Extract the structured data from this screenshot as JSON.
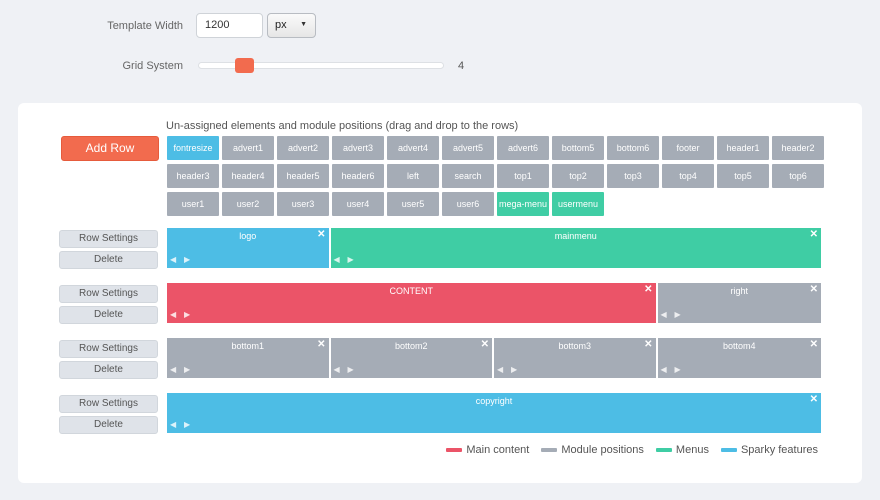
{
  "settings": {
    "width_label": "Template Width",
    "width_value": "1200",
    "unit_value": "px",
    "grid_label": "Grid System",
    "grid_value": "4",
    "grid_fraction": 0.15
  },
  "builder": {
    "add_row_label": "Add Row",
    "unassigned_title": "Un-assigned elements and module positions (drag and drop to the rows)",
    "unassigned": [
      {
        "label": "fontresize",
        "type": "sparky"
      },
      {
        "label": "advert1",
        "type": "module"
      },
      {
        "label": "advert2",
        "type": "module"
      },
      {
        "label": "advert3",
        "type": "module"
      },
      {
        "label": "advert4",
        "type": "module"
      },
      {
        "label": "advert5",
        "type": "module"
      },
      {
        "label": "advert6",
        "type": "module"
      },
      {
        "label": "bottom5",
        "type": "module"
      },
      {
        "label": "bottom6",
        "type": "module"
      },
      {
        "label": "footer",
        "type": "module"
      },
      {
        "label": "header1",
        "type": "module"
      },
      {
        "label": "header2",
        "type": "module"
      },
      {
        "label": "header3",
        "type": "module"
      },
      {
        "label": "header4",
        "type": "module"
      },
      {
        "label": "header5",
        "type": "module"
      },
      {
        "label": "header6",
        "type": "module"
      },
      {
        "label": "left",
        "type": "module"
      },
      {
        "label": "search",
        "type": "module"
      },
      {
        "label": "top1",
        "type": "module"
      },
      {
        "label": "top2",
        "type": "module"
      },
      {
        "label": "top3",
        "type": "module"
      },
      {
        "label": "top4",
        "type": "module"
      },
      {
        "label": "top5",
        "type": "module"
      },
      {
        "label": "top6",
        "type": "module"
      },
      {
        "label": "user1",
        "type": "module"
      },
      {
        "label": "user2",
        "type": "module"
      },
      {
        "label": "user3",
        "type": "module"
      },
      {
        "label": "user4",
        "type": "module"
      },
      {
        "label": "user5",
        "type": "module"
      },
      {
        "label": "user6",
        "type": "module"
      },
      {
        "label": "mega-menu",
        "type": "menu"
      },
      {
        "label": "usermenu",
        "type": "menu"
      }
    ],
    "row_settings_label": "Row Settings",
    "delete_label": "Delete",
    "rows": [
      {
        "blocks": [
          {
            "label": "logo",
            "type": "sparky",
            "span": 1
          },
          {
            "label": "mainmenu",
            "type": "menu",
            "span": 3
          }
        ]
      },
      {
        "blocks": [
          {
            "label": "CONTENT",
            "type": "main",
            "span": 3
          },
          {
            "label": "right",
            "type": "module",
            "span": 1
          }
        ]
      },
      {
        "blocks": [
          {
            "label": "bottom1",
            "type": "module",
            "span": 1
          },
          {
            "label": "bottom2",
            "type": "module",
            "span": 1
          },
          {
            "label": "bottom3",
            "type": "module",
            "span": 1
          },
          {
            "label": "bottom4",
            "type": "module",
            "span": 1
          }
        ]
      },
      {
        "blocks": [
          {
            "label": "copyright",
            "type": "sparky",
            "span": 4
          }
        ]
      }
    ],
    "legend": [
      {
        "label": "Main content",
        "color": "#eb5468"
      },
      {
        "label": "Module positions",
        "color": "#a5acb6"
      },
      {
        "label": "Menus",
        "color": "#3fcda4"
      },
      {
        "label": "Sparky features",
        "color": "#4dbde5"
      }
    ]
  },
  "icons": {
    "close": "✕",
    "move_left": "◀",
    "move_right": "▶",
    "caret": "▼"
  }
}
